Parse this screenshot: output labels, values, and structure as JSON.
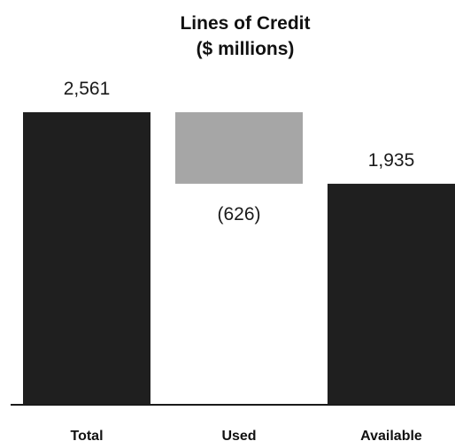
{
  "chart_data": {
    "type": "bar",
    "subtype": "waterfall",
    "title": "Lines of Credit",
    "subtitle": "($ millions)",
    "categories": [
      "Total",
      "Used",
      "Available"
    ],
    "values": [
      2561,
      -626,
      1935
    ],
    "value_labels": [
      "2,561",
      "(626)",
      "1,935"
    ],
    "xlabel": "",
    "ylabel": "",
    "ylim": [
      0,
      2561
    ],
    "grid": false,
    "legend": "none",
    "colors": {
      "total": "#1f1f1f",
      "used": "#a6a6a6",
      "available": "#1f1f1f",
      "axis": "#1a1a1a",
      "text": "#111111"
    }
  }
}
